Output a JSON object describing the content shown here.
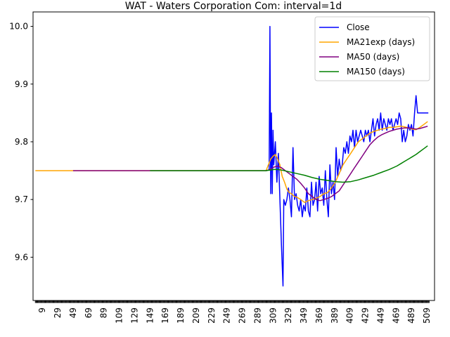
{
  "chart_data": {
    "type": "line",
    "title": "WAT - Waters Corporation Com: interval=1d",
    "xlabel": "",
    "ylabel": "",
    "xlim": [
      -3,
      519
    ],
    "ylim": [
      9.525,
      10.025
    ],
    "x_ticks": [
      9,
      29,
      49,
      69,
      89,
      109,
      129,
      149,
      169,
      189,
      209,
      229,
      249,
      269,
      289,
      309,
      329,
      349,
      369,
      389,
      409,
      429,
      449,
      469,
      489,
      509
    ],
    "y_ticks": [
      9.6,
      9.7,
      9.8,
      9.9,
      10.0
    ],
    "y_tick_labels": [
      "9.6",
      "9.7",
      "9.8",
      "9.9",
      "10.0"
    ],
    "grid": false,
    "legend_position": "top-right",
    "series": [
      {
        "name": "Close",
        "color": "#0000ff",
        "x": [
          304,
          305,
          306,
          307,
          308,
          309,
          310,
          312,
          314,
          316,
          318,
          320,
          322,
          323,
          325,
          327,
          329,
          331,
          333,
          335,
          337,
          339,
          341,
          343,
          345,
          347,
          349,
          351,
          353,
          355,
          357,
          359,
          361,
          363,
          365,
          367,
          369,
          371,
          373,
          375,
          377,
          379,
          381,
          383,
          385,
          387,
          389,
          391,
          393,
          395,
          397,
          399,
          401,
          403,
          405,
          407,
          409,
          411,
          413,
          415,
          417,
          419,
          421,
          423,
          425,
          427,
          429,
          431,
          433,
          435,
          437,
          439,
          441,
          443,
          445,
          447,
          449,
          451,
          453,
          455,
          457,
          459,
          461,
          463,
          465,
          467,
          469,
          471,
          473,
          475,
          477,
          479,
          481,
          483,
          485,
          487,
          489,
          491,
          493,
          495,
          497,
          499,
          501,
          503,
          505,
          507,
          509,
          511
        ],
        "y": [
          9.75,
          10.0,
          9.71,
          9.85,
          9.71,
          9.82,
          9.76,
          9.8,
          9.73,
          9.78,
          9.7,
          9.62,
          9.55,
          9.7,
          9.69,
          9.7,
          9.72,
          9.7,
          9.67,
          9.79,
          9.7,
          9.71,
          9.69,
          9.68,
          9.7,
          9.67,
          9.69,
          9.68,
          9.72,
          9.68,
          9.67,
          9.73,
          9.69,
          9.7,
          9.73,
          9.68,
          9.74,
          9.71,
          9.72,
          9.69,
          9.75,
          9.7,
          9.67,
          9.76,
          9.71,
          9.73,
          9.7,
          9.79,
          9.74,
          9.77,
          9.75,
          9.76,
          9.79,
          9.78,
          9.8,
          9.78,
          9.81,
          9.8,
          9.82,
          9.79,
          9.82,
          9.8,
          9.81,
          9.82,
          9.81,
          9.8,
          9.82,
          9.81,
          9.82,
          9.8,
          9.82,
          9.84,
          9.81,
          9.83,
          9.84,
          9.82,
          9.85,
          9.82,
          9.84,
          9.83,
          9.82,
          9.84,
          9.83,
          9.84,
          9.82,
          9.83,
          9.84,
          9.83,
          9.85,
          9.84,
          9.8,
          9.82,
          9.8,
          9.81,
          9.83,
          9.82,
          9.83,
          9.81,
          9.85,
          9.88,
          9.85,
          9.85,
          9.85,
          9.85,
          9.85,
          9.85,
          9.85,
          9.85
        ]
      },
      {
        "name": "MA21exp (days)",
        "color": "#ffa500",
        "x": [
          0,
          50,
          100,
          150,
          200,
          250,
          300,
          303,
          306,
          309,
          312,
          315,
          318,
          321,
          324,
          327,
          330,
          333,
          336,
          340,
          345,
          350,
          355,
          360,
          365,
          370,
          375,
          380,
          385,
          390,
          395,
          400,
          405,
          410,
          415,
          420,
          425,
          430,
          435,
          440,
          445,
          450,
          455,
          460,
          465,
          470,
          475,
          480,
          485,
          490,
          495,
          500,
          505,
          510
        ],
        "y": [
          9.75,
          9.75,
          9.75,
          9.75,
          9.75,
          9.75,
          9.75,
          9.76,
          9.77,
          9.775,
          9.778,
          9.77,
          9.76,
          9.74,
          9.73,
          9.718,
          9.712,
          9.71,
          9.706,
          9.704,
          9.7,
          9.695,
          9.698,
          9.7,
          9.702,
          9.705,
          9.71,
          9.712,
          9.72,
          9.73,
          9.745,
          9.76,
          9.77,
          9.78,
          9.79,
          9.8,
          9.805,
          9.81,
          9.815,
          9.818,
          9.82,
          9.822,
          9.823,
          9.825,
          9.825,
          9.826,
          9.827,
          9.826,
          9.824,
          9.822,
          9.821,
          9.825,
          9.83,
          9.835
        ]
      },
      {
        "name": "MA50 (days)",
        "color": "#800080",
        "x": [
          49,
          100,
          150,
          200,
          250,
          300,
          305,
          310,
          315,
          320,
          325,
          330,
          335,
          340,
          345,
          350,
          355,
          360,
          365,
          370,
          375,
          380,
          385,
          390,
          395,
          400,
          405,
          410,
          415,
          420,
          425,
          430,
          435,
          440,
          445,
          450,
          455,
          460,
          465,
          470,
          475,
          480,
          485,
          490,
          495,
          500,
          505,
          510
        ],
        "y": [
          9.75,
          9.75,
          9.75,
          9.75,
          9.75,
          9.75,
          9.752,
          9.756,
          9.758,
          9.755,
          9.75,
          9.745,
          9.74,
          9.735,
          9.728,
          9.72,
          9.71,
          9.705,
          9.7,
          9.698,
          9.7,
          9.702,
          9.705,
          9.71,
          9.715,
          9.725,
          9.735,
          9.745,
          9.755,
          9.765,
          9.775,
          9.785,
          9.795,
          9.802,
          9.808,
          9.812,
          9.815,
          9.818,
          9.82,
          9.822,
          9.823,
          9.824,
          9.824,
          9.823,
          9.822,
          9.823,
          9.825,
          9.827
        ]
      },
      {
        "name": "MA150 (days)",
        "color": "#008000",
        "x": [
          149,
          200,
          250,
          300,
          305,
          310,
          315,
          320,
          330,
          340,
          350,
          360,
          370,
          380,
          390,
          400,
          410,
          420,
          430,
          440,
          450,
          460,
          470,
          475,
          480,
          485,
          490,
          495,
          500,
          505,
          510
        ],
        "y": [
          9.75,
          9.75,
          9.75,
          9.75,
          9.751,
          9.752,
          9.752,
          9.751,
          9.748,
          9.745,
          9.742,
          9.738,
          9.735,
          9.733,
          9.731,
          9.73,
          9.731,
          9.734,
          9.738,
          9.742,
          9.747,
          9.752,
          9.758,
          9.762,
          9.766,
          9.77,
          9.774,
          9.778,
          9.783,
          9.788,
          9.793
        ]
      }
    ]
  }
}
